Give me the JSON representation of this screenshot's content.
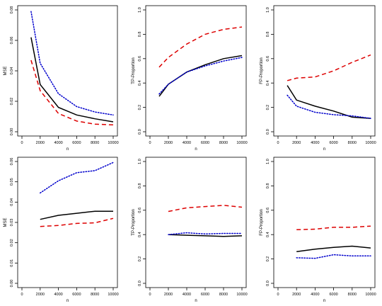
{
  "chart_data": [
    {
      "type": "line",
      "xlabel": "n",
      "ylabel": "MSE",
      "xlim": [
        0,
        10000
      ],
      "ylim": [
        0,
        0.08
      ],
      "xticks": [
        0,
        2000,
        4000,
        6000,
        8000,
        10000
      ],
      "yticks": [
        0.0,
        0.02,
        0.04,
        0.06,
        0.08
      ],
      "yticklabels": [
        "0.00",
        "0.02",
        "0.04",
        "0.06",
        "0.08"
      ],
      "x": [
        1000,
        2000,
        4000,
        6000,
        8000,
        10000
      ],
      "series": [
        {
          "color": "#000000",
          "style": "solid",
          "values": [
            0.062,
            0.031,
            0.016,
            0.011,
            0.0085,
            0.0065
          ]
        },
        {
          "color": "#0000cc",
          "style": "dotted",
          "values": [
            0.079,
            0.045,
            0.025,
            0.0165,
            0.013,
            0.011
          ]
        },
        {
          "color": "#dd0000",
          "style": "dashed",
          "values": [
            0.047,
            0.027,
            0.012,
            0.007,
            0.005,
            0.0045
          ]
        }
      ]
    },
    {
      "type": "line",
      "xlabel": "n",
      "ylabel": "TP-Proportion",
      "xlim": [
        0,
        10000
      ],
      "ylim": [
        0,
        1
      ],
      "xticks": [
        0,
        2000,
        4000,
        6000,
        8000,
        10000
      ],
      "yticks": [
        0,
        0.2,
        0.4,
        0.6,
        0.8,
        1.0
      ],
      "yticklabels": [
        "0.0",
        "0.2",
        "0.4",
        "0.6",
        "0.8",
        "1.0"
      ],
      "x": [
        1000,
        2000,
        4000,
        6000,
        8000,
        10000
      ],
      "series": [
        {
          "color": "#000000",
          "style": "solid",
          "values": [
            0.29,
            0.39,
            0.49,
            0.55,
            0.6,
            0.625
          ]
        },
        {
          "color": "#0000cc",
          "style": "dotted",
          "values": [
            0.31,
            0.39,
            0.49,
            0.54,
            0.58,
            0.61
          ]
        },
        {
          "color": "#dd0000",
          "style": "dashed",
          "values": [
            0.53,
            0.61,
            0.72,
            0.8,
            0.84,
            0.86
          ]
        }
      ]
    },
    {
      "type": "line",
      "xlabel": "n",
      "ylabel": "FP-Proportion",
      "xlim": [
        0,
        10000
      ],
      "ylim": [
        0,
        1
      ],
      "xticks": [
        0,
        2000,
        4000,
        6000,
        8000,
        10000
      ],
      "yticks": [
        0,
        0.2,
        0.4,
        0.6,
        0.8,
        1.0
      ],
      "yticklabels": [
        "0.0",
        "0.2",
        "0.4",
        "0.6",
        "0.8",
        "1.0"
      ],
      "x": [
        1000,
        2000,
        4000,
        6000,
        8000,
        10000
      ],
      "series": [
        {
          "color": "#000000",
          "style": "solid",
          "values": [
            0.38,
            0.26,
            0.21,
            0.17,
            0.12,
            0.11
          ]
        },
        {
          "color": "#0000cc",
          "style": "dotted",
          "values": [
            0.3,
            0.21,
            0.16,
            0.14,
            0.13,
            0.11
          ]
        },
        {
          "color": "#dd0000",
          "style": "dashed",
          "values": [
            0.42,
            0.44,
            0.45,
            0.5,
            0.57,
            0.63
          ]
        }
      ]
    },
    {
      "type": "line",
      "xlabel": "n",
      "ylabel": "MSE",
      "xlim": [
        0,
        10000
      ],
      "ylim": [
        0,
        0.06
      ],
      "xticks": [
        0,
        2000,
        4000,
        6000,
        8000,
        10000
      ],
      "yticks": [
        0.0,
        0.01,
        0.02,
        0.03,
        0.04,
        0.05,
        0.06
      ],
      "yticklabels": [
        "0.00",
        "0.01",
        "0.02",
        "0.03",
        "0.04",
        "0.05",
        "0.06"
      ],
      "x": [
        2000,
        4000,
        6000,
        8000,
        10000
      ],
      "series": [
        {
          "color": "#000000",
          "style": "solid",
          "values": [
            0.0315,
            0.0335,
            0.0345,
            0.0355,
            0.0355
          ]
        },
        {
          "color": "#0000cc",
          "style": "dotted",
          "values": [
            0.0445,
            0.0505,
            0.0545,
            0.0555,
            0.0595
          ]
        },
        {
          "color": "#dd0000",
          "style": "dashed",
          "values": [
            0.028,
            0.0285,
            0.0295,
            0.0298,
            0.032
          ]
        }
      ]
    },
    {
      "type": "line",
      "xlabel": "n",
      "ylabel": "TP-Proportion",
      "xlim": [
        0,
        10000
      ],
      "ylim": [
        0,
        1
      ],
      "xticks": [
        0,
        2000,
        4000,
        6000,
        8000,
        10000
      ],
      "yticks": [
        0,
        0.2,
        0.4,
        0.6,
        0.8,
        1.0
      ],
      "yticklabels": [
        "0.0",
        "0.2",
        "0.4",
        "0.6",
        "0.8",
        "1.0"
      ],
      "x": [
        2000,
        4000,
        6000,
        8000,
        10000
      ],
      "series": [
        {
          "color": "#000000",
          "style": "solid",
          "values": [
            0.4,
            0.395,
            0.39,
            0.385,
            0.39
          ]
        },
        {
          "color": "#0000cc",
          "style": "dotted",
          "values": [
            0.4,
            0.415,
            0.405,
            0.41,
            0.41
          ]
        },
        {
          "color": "#dd0000",
          "style": "dashed",
          "values": [
            0.59,
            0.62,
            0.63,
            0.64,
            0.625
          ]
        }
      ]
    },
    {
      "type": "line",
      "xlabel": "n",
      "ylabel": "FP-Proportion",
      "xlim": [
        0,
        10000
      ],
      "ylim": [
        0,
        1
      ],
      "xticks": [
        0,
        2000,
        4000,
        6000,
        8000,
        10000
      ],
      "yticks": [
        0,
        0.2,
        0.4,
        0.6,
        0.8,
        1.0
      ],
      "yticklabels": [
        "0.0",
        "0.2",
        "0.4",
        "0.6",
        "0.8",
        "1.0"
      ],
      "x": [
        2000,
        4000,
        6000,
        8000,
        10000
      ],
      "series": [
        {
          "color": "#000000",
          "style": "solid",
          "values": [
            0.26,
            0.28,
            0.295,
            0.305,
            0.29
          ]
        },
        {
          "color": "#0000cc",
          "style": "dotted",
          "values": [
            0.21,
            0.205,
            0.235,
            0.225,
            0.225
          ]
        },
        {
          "color": "#dd0000",
          "style": "dashed",
          "values": [
            0.44,
            0.445,
            0.46,
            0.46,
            0.47
          ]
        }
      ]
    }
  ]
}
